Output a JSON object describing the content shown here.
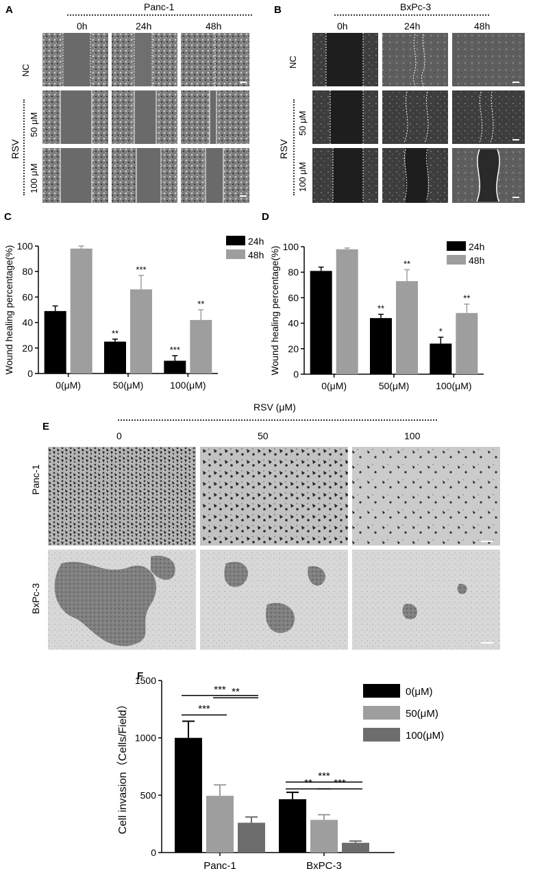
{
  "panels": {
    "A": {
      "letter": "A",
      "cell_line": "Panc-1",
      "times": [
        "0h",
        "24h",
        "48h"
      ],
      "rows": [
        "NC",
        "50 μM",
        "100 μM"
      ],
      "group_label": "RSV"
    },
    "B": {
      "letter": "B",
      "cell_line": "BxPc-3",
      "times": [
        "0h",
        "24h",
        "48h"
      ],
      "rows": [
        "NC",
        "50 μM",
        "100 μM"
      ],
      "group_label": "RSV"
    },
    "C": {
      "letter": "C"
    },
    "D": {
      "letter": "D"
    },
    "E": {
      "letter": "E",
      "header": "RSV (μM)",
      "concentrations": [
        "0",
        "50",
        "100"
      ],
      "rows": [
        "Panc-1",
        "BxPc-3"
      ]
    },
    "F": {
      "letter": "F"
    }
  },
  "colors": {
    "black": "#000000",
    "light_gray": "#9e9e9e",
    "mid_gray": "#6d6d6d",
    "dark_gray": "#707070"
  },
  "chart_data": [
    {
      "panel": "C",
      "type": "bar",
      "categories": [
        "0(μM)",
        "50(μM)",
        "100(μM)"
      ],
      "series": [
        {
          "name": "24h",
          "color": "#000000",
          "values": [
            49,
            25,
            10
          ],
          "errors": [
            4,
            2,
            4
          ],
          "sig": [
            "",
            "**",
            "***"
          ]
        },
        {
          "name": "48h",
          "color": "#9e9e9e",
          "values": [
            98,
            66,
            42
          ],
          "errors": [
            2,
            11,
            8
          ],
          "sig": [
            "",
            "***",
            "**"
          ]
        }
      ],
      "ylabel": "Wound healing percentage(%)",
      "ylim": [
        0,
        100
      ],
      "yticks": [
        0,
        20,
        40,
        60,
        80,
        100
      ],
      "legend": "top-right"
    },
    {
      "panel": "D",
      "type": "bar",
      "categories": [
        "0(μM)",
        "50(μM)",
        "100(μM)"
      ],
      "series": [
        {
          "name": "24h",
          "color": "#000000",
          "values": [
            81,
            44,
            24
          ],
          "errors": [
            3,
            3,
            5
          ],
          "sig": [
            "",
            "**",
            "*"
          ]
        },
        {
          "name": "48h",
          "color": "#9e9e9e",
          "values": [
            98,
            73,
            48
          ],
          "errors": [
            1,
            9,
            7
          ],
          "sig": [
            "",
            "**",
            "**"
          ]
        }
      ],
      "ylabel": "Wound healing percentage(%)",
      "ylim": [
        0,
        100
      ],
      "yticks": [
        0,
        20,
        40,
        60,
        80,
        100
      ],
      "legend": "top-right"
    },
    {
      "panel": "F",
      "type": "bar",
      "categories": [
        "Panc-1",
        "BxPC-3"
      ],
      "series": [
        {
          "name": "0(μM)",
          "color": "#000000",
          "values": [
            1000,
            465
          ],
          "errors": [
            145,
            60
          ]
        },
        {
          "name": "50(μM)",
          "color": "#9e9e9e",
          "values": [
            495,
            285
          ],
          "errors": [
            95,
            45
          ]
        },
        {
          "name": "100(μM)",
          "color": "#6d6d6d",
          "values": [
            260,
            85
          ],
          "errors": [
            50,
            15
          ]
        }
      ],
      "brackets": [
        {
          "group": 0,
          "from": 0,
          "to": 2,
          "label": "***"
        },
        {
          "group": 0,
          "from": 0,
          "to": 1,
          "label": "***"
        },
        {
          "group": 0,
          "from": 1,
          "to": 2,
          "label": "**"
        },
        {
          "group": 1,
          "from": 0,
          "to": 2,
          "label": "***"
        },
        {
          "group": 1,
          "from": 0,
          "to": 1,
          "label": "**"
        },
        {
          "group": 1,
          "from": 1,
          "to": 2,
          "label": "***"
        }
      ],
      "ylabel": "Cell invasion（Cells/Field）",
      "ylim": [
        0,
        1500
      ],
      "yticks": [
        0,
        500,
        1000,
        1500
      ],
      "legend": "top-right"
    }
  ]
}
